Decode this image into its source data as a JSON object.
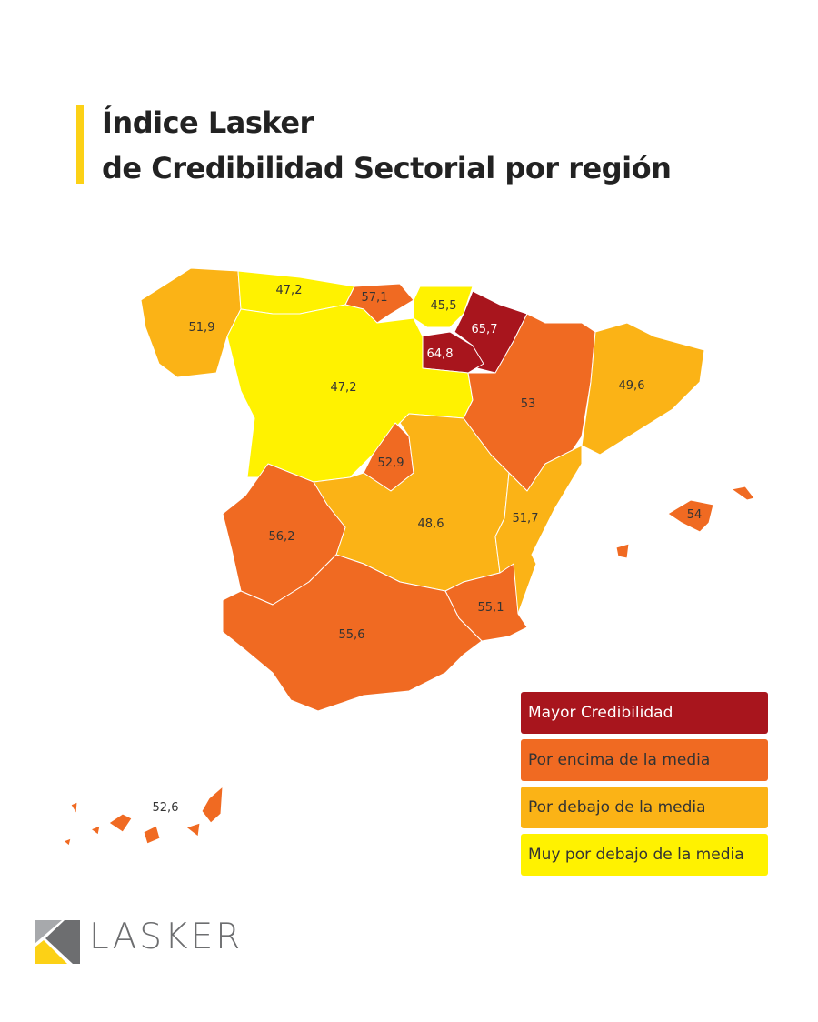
{
  "title": {
    "line1": "Índice Lasker",
    "line2": "de Credibilidad Sectorial por región"
  },
  "colors": {
    "mayor": "#a8151d",
    "encima": "#f06a22",
    "debajo": "#fbb316",
    "muy_debajo": "#fff200",
    "accent": "#fcd116"
  },
  "regions": [
    {
      "value": "51,9",
      "category": "debajo"
    },
    {
      "value": "47,2",
      "category": "muy_debajo"
    },
    {
      "value": "57,1",
      "category": "encima"
    },
    {
      "value": "45,5",
      "category": "muy_debajo"
    },
    {
      "value": "65,7",
      "category": "mayor"
    },
    {
      "value": "64,8",
      "category": "mayor"
    },
    {
      "value": "47,2",
      "category": "muy_debajo"
    },
    {
      "value": "53",
      "category": "encima"
    },
    {
      "value": "49,6",
      "category": "debajo"
    },
    {
      "value": "52,9",
      "category": "encima"
    },
    {
      "value": "48,6",
      "category": "debajo"
    },
    {
      "value": "51,7",
      "category": "debajo"
    },
    {
      "value": "56,2",
      "category": "encima"
    },
    {
      "value": "55,1",
      "category": "encima"
    },
    {
      "value": "55,6",
      "category": "encima"
    },
    {
      "value": "54",
      "category": "encima"
    },
    {
      "value": "52,6",
      "category": "encima"
    }
  ],
  "legend": [
    {
      "label": "Mayor Credibilidad",
      "category": "mayor"
    },
    {
      "label": "Por encima de la media",
      "category": "encima"
    },
    {
      "label": "Por debajo de la media",
      "category": "debajo"
    },
    {
      "label": "Muy por debajo de la media",
      "category": "muy_debajo"
    }
  ],
  "logo": {
    "text": "LASKER"
  }
}
